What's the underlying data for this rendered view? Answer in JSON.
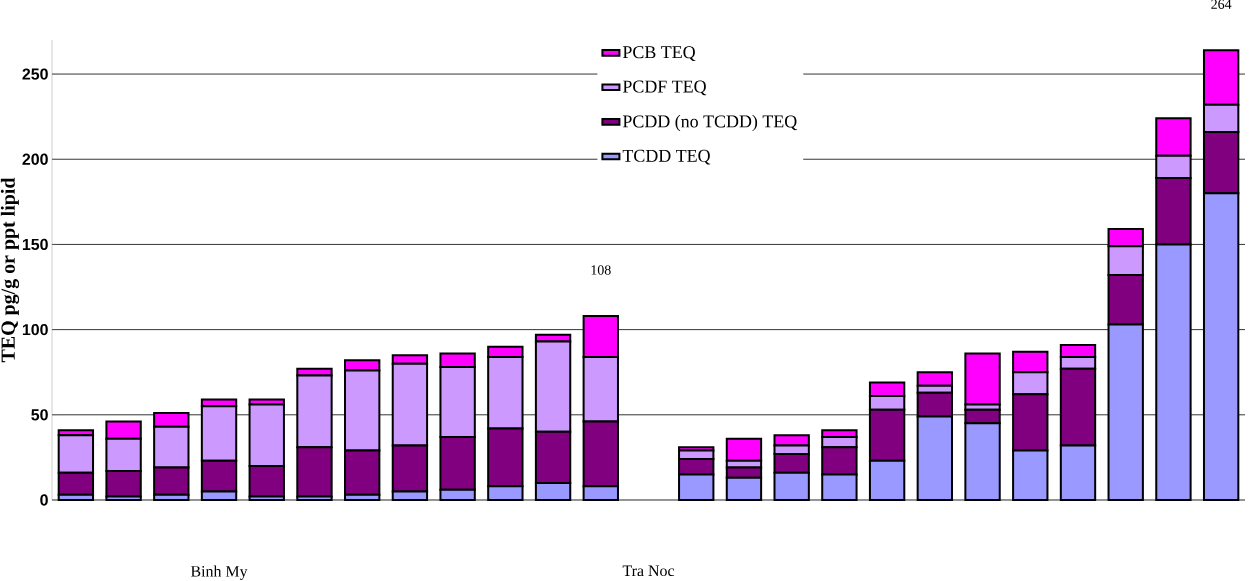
{
  "chart_data": {
    "type": "bar",
    "stacked": true,
    "ylabel": "TEQ pg/g or ppt lipid",
    "categories": [
      null,
      null,
      null,
      "Binh My",
      null,
      null,
      null,
      null,
      null,
      null,
      null,
      null,
      "Tra Noc",
      null,
      null,
      null,
      null,
      null,
      null,
      null,
      null,
      null,
      null,
      null,
      null
    ],
    "series": [
      {
        "name": "TCDD TEQ",
        "color": "#9999ff",
        "values": [
          3,
          2,
          3,
          5,
          2,
          2,
          3,
          5,
          6,
          8,
          10,
          8,
          null,
          15,
          13,
          16,
          15,
          23,
          49,
          45,
          29,
          32,
          103,
          150,
          180
        ]
      },
      {
        "name": "PCDD (no TCDD) TEQ",
        "color": "#800080",
        "values": [
          13,
          15,
          16,
          18,
          18,
          29,
          26,
          27,
          31,
          34,
          30,
          38,
          null,
          9,
          6,
          11,
          16,
          30,
          14,
          8,
          33,
          45,
          29,
          39,
          36
        ]
      },
      {
        "name": "PCDF TEQ",
        "color": "#cc99ff",
        "values": [
          22,
          19,
          24,
          32,
          36,
          42,
          47,
          48,
          41,
          42,
          53,
          38,
          null,
          5,
          4,
          5,
          6,
          8,
          4,
          3,
          13,
          7,
          17,
          13,
          16
        ]
      },
      {
        "name": "PCB TEQ",
        "color": "#ff00ff",
        "values": [
          3,
          10,
          8,
          4,
          3,
          4,
          6,
          5,
          8,
          6,
          4,
          24,
          null,
          2,
          13,
          6,
          4,
          8,
          8,
          30,
          12,
          7,
          10,
          22,
          32
        ]
      }
    ],
    "totals": [
      null,
      null,
      null,
      null,
      null,
      null,
      null,
      null,
      null,
      null,
      null,
      "108",
      null,
      null,
      null,
      null,
      null,
      null,
      null,
      null,
      null,
      null,
      null,
      null,
      "264"
    ],
    "ylim": [
      0,
      270
    ],
    "yticks": [
      0,
      50,
      100,
      150,
      200,
      250
    ],
    "grid": "y",
    "legend": "top"
  }
}
